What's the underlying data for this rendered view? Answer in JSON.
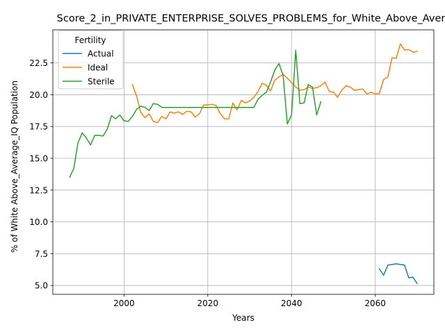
{
  "chart_data": {
    "type": "line",
    "title": "Score_2_in_PRIVATE_ENTERPRISE_SOLVES_PROBLEMS_for_White_Above_Aver",
    "xlabel": "Years",
    "ylabel": "% of White Above_Average_IQ Population",
    "xlim": [
      1983,
      2074
    ],
    "ylim": [
      4.3,
      25.1
    ],
    "xticks": [
      2000,
      2020,
      2040,
      2060
    ],
    "yticks": [
      5.0,
      7.5,
      10.0,
      12.5,
      15.0,
      17.5,
      20.0,
      22.5
    ],
    "ytick_labels": [
      "5.0",
      "7.5",
      "10.0",
      "12.5",
      "15.0",
      "17.5",
      "20.0",
      "22.5"
    ],
    "grid": true,
    "legend": {
      "title": "Fertility",
      "placement": "top-left"
    },
    "series": [
      {
        "name": "Actual",
        "color": "#1f77b4",
        "x": [
          2061,
          2062,
          2063,
          2064,
          2065,
          2066,
          2067,
          2068,
          2069,
          2070
        ],
        "y": [
          6.3,
          5.8,
          6.6,
          6.65,
          6.7,
          6.65,
          6.6,
          5.6,
          5.65,
          5.15
        ]
      },
      {
        "name": "Ideal",
        "color": "#ff7f0e",
        "x": [
          2002,
          2003,
          2004,
          2005,
          2006,
          2007,
          2008,
          2009,
          2010,
          2011,
          2012,
          2013,
          2014,
          2015,
          2016,
          2017,
          2018,
          2019,
          2020,
          2021,
          2022,
          2023,
          2024,
          2025,
          2026,
          2027,
          2028,
          2029,
          2030,
          2031,
          2032,
          2033,
          2034,
          2035,
          2036,
          2037,
          2038,
          2039,
          2040,
          2041,
          2042,
          2043,
          2044,
          2045,
          2046,
          2047,
          2048,
          2049,
          2050,
          2051,
          2052,
          2053,
          2054,
          2055,
          2056,
          2057,
          2058,
          2059,
          2060,
          2061,
          2062,
          2063,
          2064,
          2065,
          2066,
          2067,
          2068,
          2069,
          2070
        ],
        "y": [
          20.8,
          19.9,
          18.6,
          18.2,
          18.5,
          17.9,
          17.8,
          18.3,
          18.1,
          18.65,
          18.55,
          18.65,
          18.45,
          18.7,
          18.65,
          18.25,
          18.5,
          19.2,
          19.2,
          19.25,
          19.15,
          18.5,
          18.1,
          18.1,
          19.35,
          18.8,
          19.55,
          19.35,
          19.5,
          19.8,
          20.25,
          20.9,
          20.75,
          20.3,
          21.15,
          21.4,
          21.6,
          21.3,
          20.95,
          20.6,
          20.35,
          20.4,
          20.6,
          20.5,
          20.55,
          20.7,
          21.0,
          20.25,
          20.2,
          19.8,
          20.35,
          20.7,
          20.6,
          20.35,
          20.4,
          20.45,
          20.05,
          20.2,
          20.05,
          20.1,
          21.2,
          21.4,
          22.9,
          22.85,
          24.0,
          23.5,
          23.55,
          23.35,
          23.4
        ]
      },
      {
        "name": "Sterile",
        "color": "#2ca02c",
        "x": [
          1987,
          1988,
          1989,
          1990,
          1991,
          1992,
          1993,
          1994,
          1995,
          1996,
          1997,
          1998,
          1999,
          2000,
          2001,
          2002,
          2003,
          2004,
          2005,
          2006,
          2007,
          2008,
          2009,
          2010,
          2011,
          2012,
          2013,
          2014,
          2015,
          2016,
          2017,
          2018,
          2019,
          2020,
          2021,
          2022,
          2023,
          2024,
          2025,
          2026,
          2027,
          2028,
          2029,
          2030,
          2031,
          2032,
          2033,
          2034,
          2035,
          2036,
          2037,
          2038,
          2039,
          2040,
          2041,
          2042,
          2043,
          2044,
          2045,
          2046,
          2047
        ],
        "y": [
          13.5,
          14.2,
          16.2,
          17.0,
          16.6,
          16.05,
          16.8,
          16.8,
          16.75,
          17.3,
          18.35,
          18.1,
          18.4,
          17.95,
          17.9,
          18.3,
          18.85,
          19.1,
          19.0,
          18.75,
          19.3,
          19.25,
          19.0,
          19.0,
          19.0,
          19.0,
          19.0,
          19.0,
          19.0,
          19.0,
          19.0,
          19.0,
          19.0,
          19.0,
          19.0,
          19.0,
          19.0,
          19.0,
          19.0,
          19.0,
          19.0,
          19.0,
          19.0,
          19.0,
          19.0,
          19.65,
          19.95,
          20.2,
          21.0,
          21.95,
          22.45,
          21.5,
          17.7,
          18.4,
          23.5,
          19.3,
          19.35,
          20.8,
          20.6,
          18.4,
          19.45
        ]
      }
    ]
  }
}
